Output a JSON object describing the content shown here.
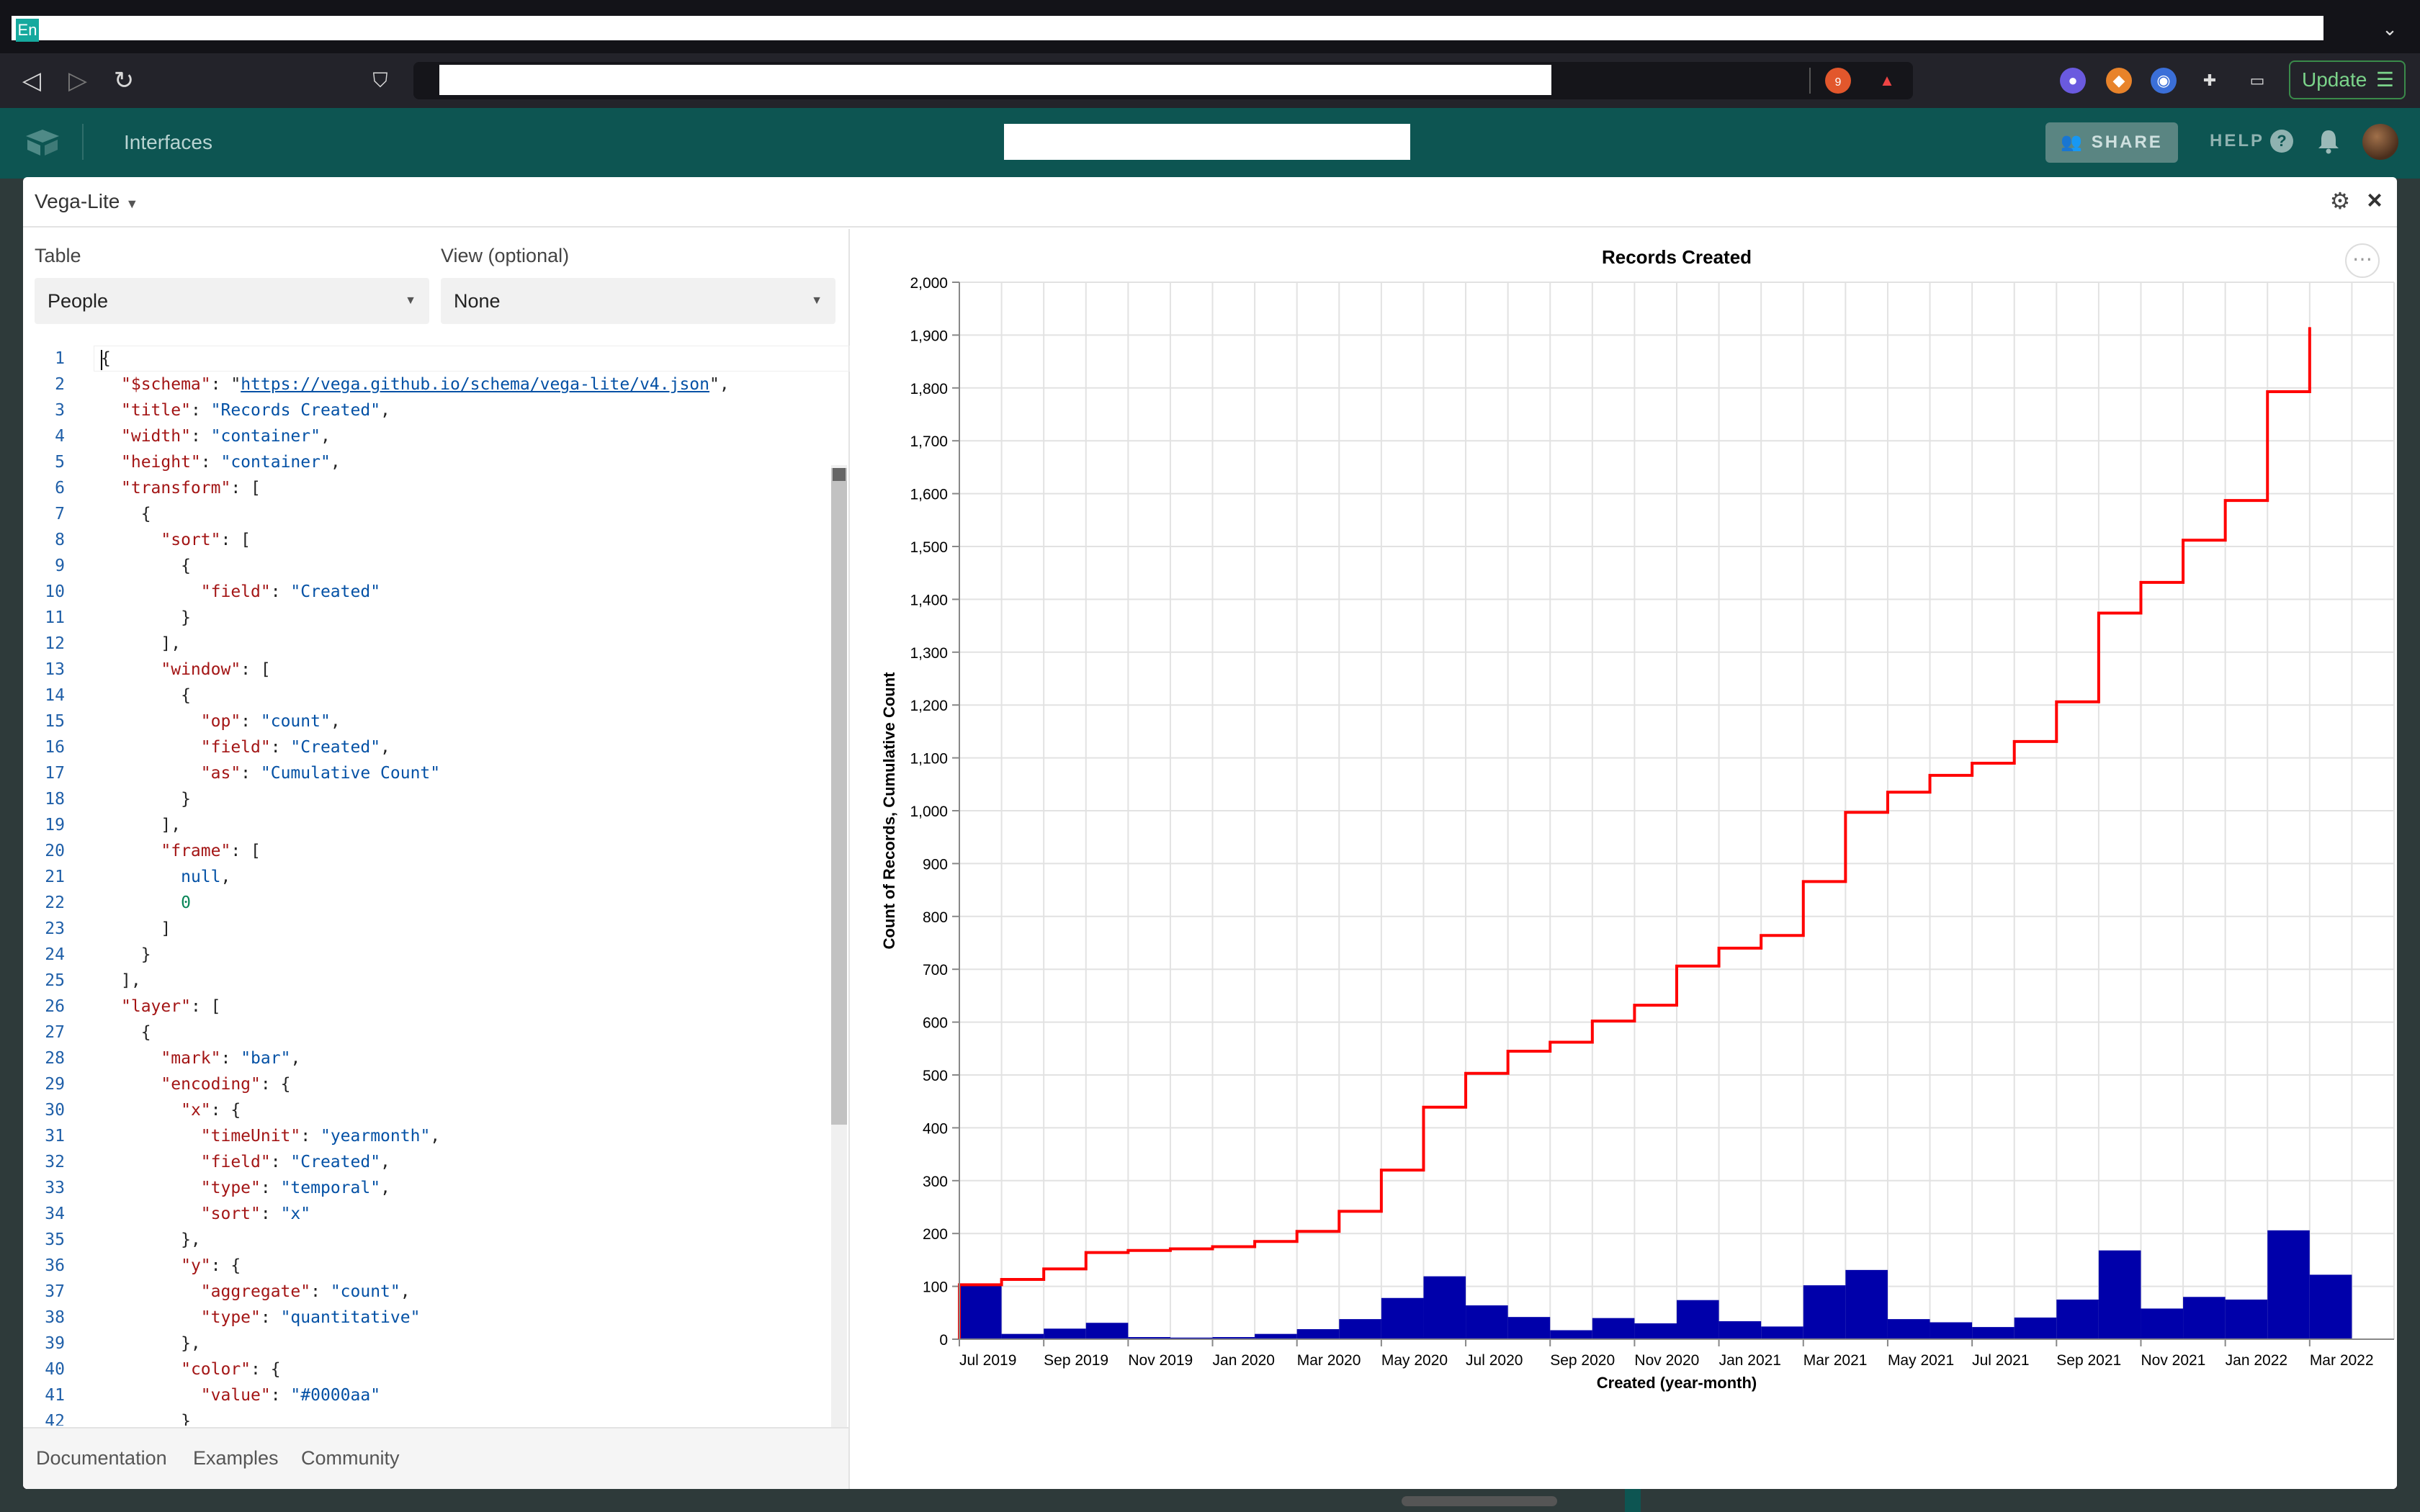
{
  "browser": {
    "tab_label": "En",
    "update_label": "Update",
    "shield_count": "9"
  },
  "app": {
    "nav_interfaces": "Interfaces",
    "share_label": "SHARE",
    "help_label": "HELP"
  },
  "block": {
    "type_label": "Vega-Lite",
    "table_label": "Table",
    "table_value": "People",
    "view_label": "View (optional)",
    "view_value": "None"
  },
  "footer": {
    "links": [
      "Documentation",
      "Examples",
      "Community"
    ]
  },
  "code_lines": [
    [
      [
        "p",
        "{"
      ]
    ],
    [
      [
        "k",
        "\"$schema\""
      ],
      [
        "p",
        ": "
      ],
      [
        "p",
        "\""
      ],
      [
        "u",
        "https://vega.github.io/schema/vega-lite/v4.json"
      ],
      [
        "p",
        "\","
      ]
    ],
    [
      [
        "k",
        "\"title\""
      ],
      [
        "p",
        ": "
      ],
      [
        "s",
        "\"Records Created\""
      ],
      [
        "p",
        ","
      ]
    ],
    [
      [
        "k",
        "\"width\""
      ],
      [
        "p",
        ": "
      ],
      [
        "s",
        "\"container\""
      ],
      [
        "p",
        ","
      ]
    ],
    [
      [
        "k",
        "\"height\""
      ],
      [
        "p",
        ": "
      ],
      [
        "s",
        "\"container\""
      ],
      [
        "p",
        ","
      ]
    ],
    [
      [
        "k",
        "\"transform\""
      ],
      [
        "p",
        ": ["
      ]
    ],
    [
      [
        "p",
        "  {"
      ]
    ],
    [
      [
        "p",
        "    "
      ],
      [
        "k",
        "\"sort\""
      ],
      [
        "p",
        ": ["
      ]
    ],
    [
      [
        "p",
        "      {"
      ]
    ],
    [
      [
        "p",
        "        "
      ],
      [
        "k",
        "\"field\""
      ],
      [
        "p",
        ": "
      ],
      [
        "s",
        "\"Created\""
      ]
    ],
    [
      [
        "p",
        "      }"
      ]
    ],
    [
      [
        "p",
        "    ],"
      ]
    ],
    [
      [
        "p",
        "    "
      ],
      [
        "k",
        "\"window\""
      ],
      [
        "p",
        ": ["
      ]
    ],
    [
      [
        "p",
        "      {"
      ]
    ],
    [
      [
        "p",
        "        "
      ],
      [
        "k",
        "\"op\""
      ],
      [
        "p",
        ": "
      ],
      [
        "s",
        "\"count\""
      ],
      [
        "p",
        ","
      ]
    ],
    [
      [
        "p",
        "        "
      ],
      [
        "k",
        "\"field\""
      ],
      [
        "p",
        ": "
      ],
      [
        "s",
        "\"Created\""
      ],
      [
        "p",
        ","
      ]
    ],
    [
      [
        "p",
        "        "
      ],
      [
        "k",
        "\"as\""
      ],
      [
        "p",
        ": "
      ],
      [
        "s",
        "\"Cumulative Count\""
      ]
    ],
    [
      [
        "p",
        "      }"
      ]
    ],
    [
      [
        "p",
        "    ],"
      ]
    ],
    [
      [
        "p",
        "    "
      ],
      [
        "k",
        "\"frame\""
      ],
      [
        "p",
        ": ["
      ]
    ],
    [
      [
        "p",
        "      "
      ],
      [
        "s",
        "null"
      ],
      [
        "p",
        ","
      ]
    ],
    [
      [
        "p",
        "      "
      ],
      [
        "n",
        "0"
      ]
    ],
    [
      [
        "p",
        "    ]"
      ]
    ],
    [
      [
        "p",
        "  }"
      ]
    ],
    [
      [
        "p",
        "],"
      ]
    ],
    [
      [
        "k",
        "\"layer\""
      ],
      [
        "p",
        ": ["
      ]
    ],
    [
      [
        "p",
        "  {"
      ]
    ],
    [
      [
        "p",
        "    "
      ],
      [
        "k",
        "\"mark\""
      ],
      [
        "p",
        ": "
      ],
      [
        "s",
        "\"bar\""
      ],
      [
        "p",
        ","
      ]
    ],
    [
      [
        "p",
        "    "
      ],
      [
        "k",
        "\"encoding\""
      ],
      [
        "p",
        ": {"
      ]
    ],
    [
      [
        "p",
        "      "
      ],
      [
        "k",
        "\"x\""
      ],
      [
        "p",
        ": {"
      ]
    ],
    [
      [
        "p",
        "        "
      ],
      [
        "k",
        "\"timeUnit\""
      ],
      [
        "p",
        ": "
      ],
      [
        "s",
        "\"yearmonth\""
      ],
      [
        "p",
        ","
      ]
    ],
    [
      [
        "p",
        "        "
      ],
      [
        "k",
        "\"field\""
      ],
      [
        "p",
        ": "
      ],
      [
        "s",
        "\"Created\""
      ],
      [
        "p",
        ","
      ]
    ],
    [
      [
        "p",
        "        "
      ],
      [
        "k",
        "\"type\""
      ],
      [
        "p",
        ": "
      ],
      [
        "s",
        "\"temporal\""
      ],
      [
        "p",
        ","
      ]
    ],
    [
      [
        "p",
        "        "
      ],
      [
        "k",
        "\"sort\""
      ],
      [
        "p",
        ": "
      ],
      [
        "s",
        "\"x\""
      ]
    ],
    [
      [
        "p",
        "      },"
      ]
    ],
    [
      [
        "p",
        "      "
      ],
      [
        "k",
        "\"y\""
      ],
      [
        "p",
        ": {"
      ]
    ],
    [
      [
        "p",
        "        "
      ],
      [
        "k",
        "\"aggregate\""
      ],
      [
        "p",
        ": "
      ],
      [
        "s",
        "\"count\""
      ],
      [
        "p",
        ","
      ]
    ],
    [
      [
        "p",
        "        "
      ],
      [
        "k",
        "\"type\""
      ],
      [
        "p",
        ": "
      ],
      [
        "s",
        "\"quantitative\""
      ]
    ],
    [
      [
        "p",
        "      },"
      ]
    ],
    [
      [
        "p",
        "      "
      ],
      [
        "k",
        "\"color\""
      ],
      [
        "p",
        ": {"
      ]
    ],
    [
      [
        "p",
        "        "
      ],
      [
        "k",
        "\"value\""
      ],
      [
        "p",
        ": "
      ],
      [
        "s",
        "\"#0000aa\""
      ]
    ],
    [
      [
        "p",
        "      }"
      ]
    ]
  ],
  "chart_data": {
    "type": "bar",
    "title": "Records Created",
    "xlabel": "Created (year-month)",
    "ylabel": "Count of Records, Cumulative Count",
    "ylim": [
      0,
      2000
    ],
    "yticks": [
      0,
      100,
      200,
      300,
      400,
      500,
      600,
      700,
      800,
      900,
      1000,
      1100,
      1200,
      1300,
      1400,
      1500,
      1600,
      1700,
      1800,
      1900,
      2000
    ],
    "ytick_labels": [
      "0",
      "100",
      "200",
      "300",
      "400",
      "500",
      "600",
      "700",
      "800",
      "900",
      "1,000",
      "1,100",
      "1,200",
      "1,300",
      "1,400",
      "1,500",
      "1,600",
      "1,700",
      "1,800",
      "1,900",
      "2,000"
    ],
    "months": [
      "Jul 2019",
      "Aug 2019",
      "Sep 2019",
      "Oct 2019",
      "Nov 2019",
      "Dec 2019",
      "Jan 2020",
      "Feb 2020",
      "Mar 2020",
      "Apr 2020",
      "May 2020",
      "Jun 2020",
      "Jul 2020",
      "Aug 2020",
      "Sep 2020",
      "Oct 2020",
      "Nov 2020",
      "Dec 2020",
      "Jan 2021",
      "Feb 2021",
      "Mar 2021",
      "Apr 2021",
      "May 2021",
      "Jun 2021",
      "Jul 2021",
      "Aug 2021",
      "Sep 2021",
      "Oct 2021",
      "Nov 2021",
      "Dec 2021",
      "Jan 2022",
      "Feb 2022",
      "Mar 2022",
      "Apr 2022"
    ],
    "xtick_labels": [
      "Jul 2019",
      "Sep 2019",
      "Nov 2019",
      "Jan 2020",
      "Mar 2020",
      "May 2020",
      "Jul 2020",
      "Sep 2020",
      "Nov 2020",
      "Jan 2021",
      "Mar 2021",
      "May 2021",
      "Jul 2021",
      "Sep 2021",
      "Nov 2021",
      "Jan 2022",
      "Mar 2022"
    ],
    "series": [
      {
        "name": "Count of Records",
        "mark": "bar",
        "color": "#0000aa",
        "values": [
          103,
          10,
          20,
          31,
          4,
          3,
          4,
          10,
          19,
          38,
          78,
          119,
          64,
          42,
          17,
          40,
          30,
          74,
          34,
          24,
          102,
          131,
          38,
          32,
          23,
          41,
          75,
          168,
          58,
          80,
          75,
          206,
          122,
          0
        ]
      },
      {
        "name": "Cumulative Count",
        "mark": "line-step",
        "color": "#ff0000",
        "values": [
          103,
          113,
          133,
          164,
          168,
          171,
          175,
          185,
          204,
          242,
          320,
          439,
          503,
          545,
          562,
          602,
          632,
          706,
          740,
          764,
          866,
          997,
          1035,
          1067,
          1090,
          1131,
          1206,
          1374,
          1432,
          1512,
          1587,
          1793,
          1915
        ]
      }
    ],
    "grid": true
  }
}
